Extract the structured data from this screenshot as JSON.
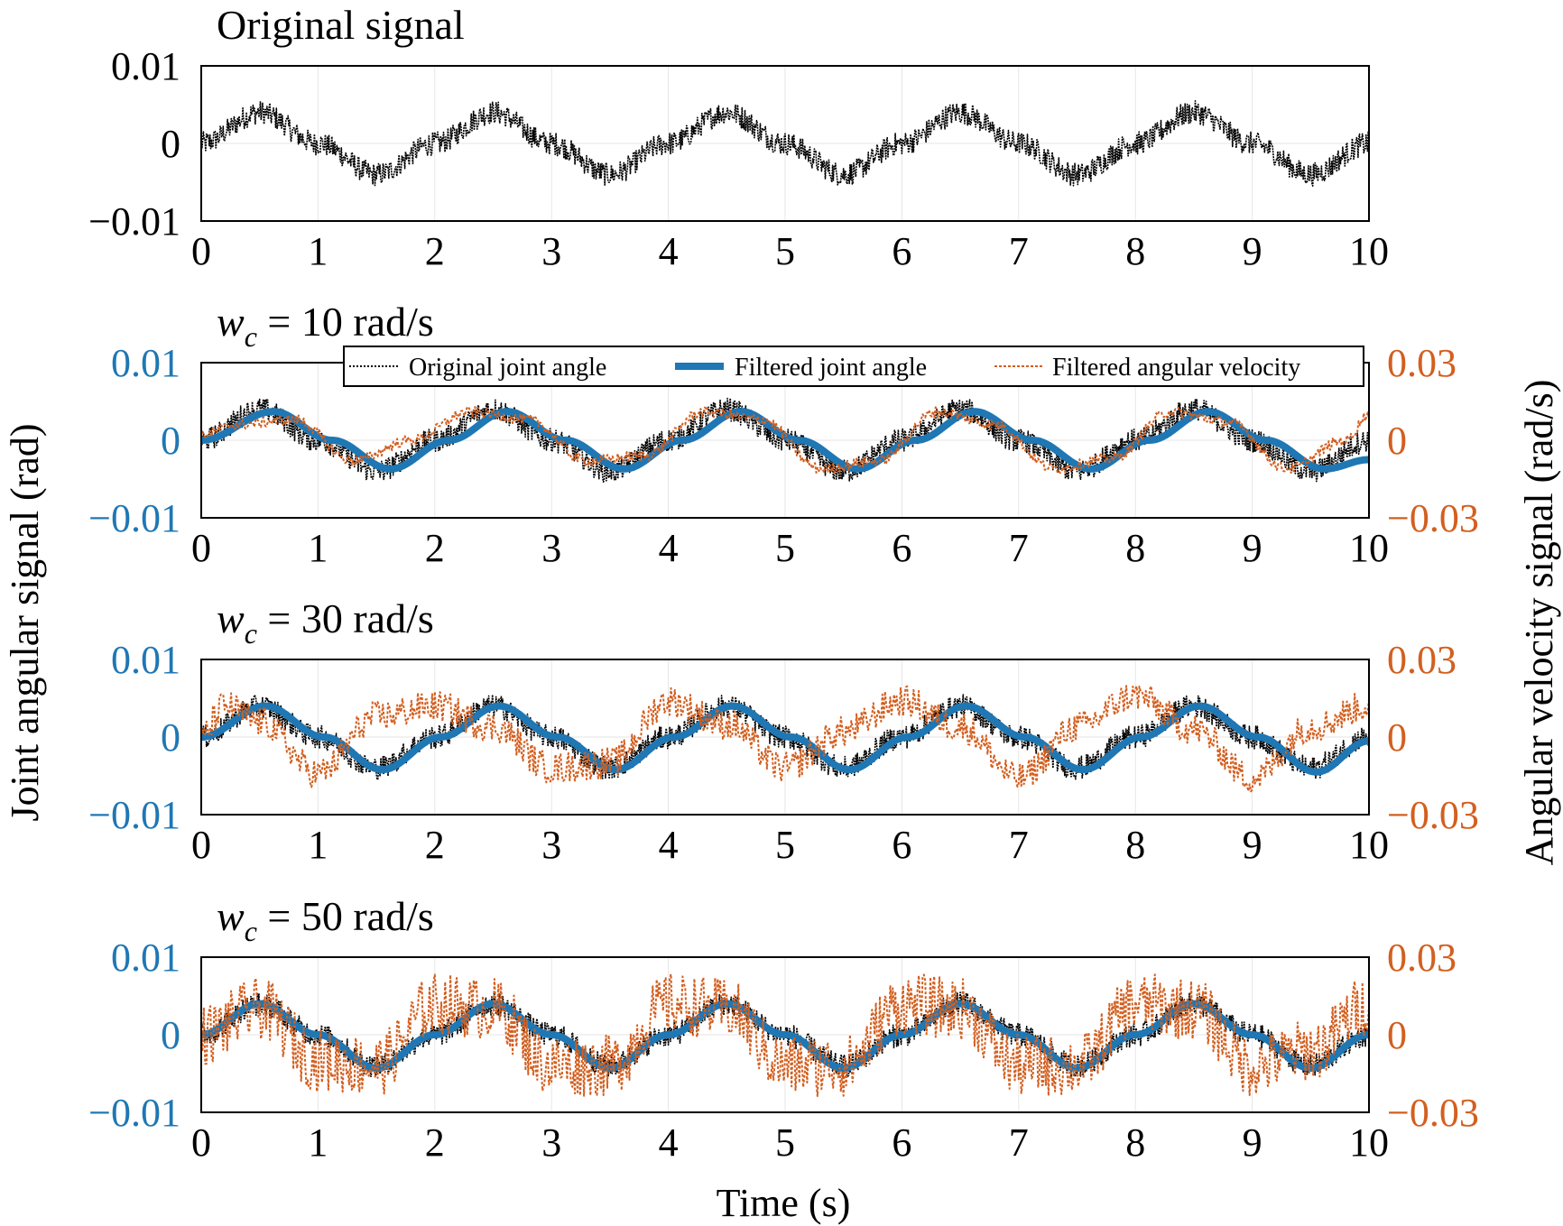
{
  "colors": {
    "original": "#000000",
    "filtered": "#1f77b4",
    "velocity": "#d35f1f",
    "grid": "#e6e6e6"
  },
  "labels": {
    "ylabel_left": "Joint angular signal (rad)",
    "ylabel_right": "Angular velocity signal (rad/s)",
    "xlabel": "Time (s)"
  },
  "legend": {
    "original": "Original joint angle",
    "filtered": "Filtered joint angle",
    "velocity": "Filtered angular velocity"
  },
  "chart_data": [
    {
      "type": "line",
      "title": "Original signal",
      "xlim": [
        0,
        10
      ],
      "ylim": [
        -0.01,
        0.01
      ],
      "xticks": [
        "0",
        "1",
        "2",
        "3",
        "4",
        "5",
        "6",
        "7",
        "8",
        "9",
        "10"
      ],
      "yticks": [
        "0.01",
        "0",
        "−0.01"
      ],
      "series": [
        {
          "name": "Original joint angle",
          "x": [
            0,
            0.5,
            1,
            1.5,
            2,
            2.5,
            3,
            3.5,
            4,
            4.5,
            5,
            5.5,
            6,
            6.5,
            7,
            7.5,
            8,
            8.5,
            9,
            9.5,
            10
          ],
          "y": [
            0,
            0.004,
            0,
            -0.004,
            0,
            0.004,
            0,
            -0.004,
            0,
            0.004,
            0,
            -0.004,
            0,
            0.004,
            0,
            -0.004,
            0,
            0.004,
            0,
            -0.004,
            0
          ],
          "noise": 0.0015
        }
      ]
    },
    {
      "type": "line",
      "title_prefix": "w",
      "title_sub": "c",
      "title_rest": " = 10 rad/s",
      "xlim": [
        0,
        10
      ],
      "ylim": [
        -0.01,
        0.01
      ],
      "y2lim": [
        -0.03,
        0.03
      ],
      "xticks": [
        "0",
        "1",
        "2",
        "3",
        "4",
        "5",
        "6",
        "7",
        "8",
        "9",
        "10"
      ],
      "yticks": [
        "0.01",
        "0",
        "−0.01"
      ],
      "y2ticks": [
        "0.03",
        "0",
        "−0.03"
      ],
      "series": [
        {
          "name": "Original joint angle",
          "x": [
            0,
            0.5,
            1,
            1.5,
            2,
            2.5,
            3,
            3.5,
            4,
            4.5,
            5,
            5.5,
            6,
            6.5,
            7,
            7.5,
            8,
            8.5,
            9,
            9.5,
            10
          ],
          "y": [
            0,
            0.004,
            0,
            -0.004,
            0,
            0.004,
            0,
            -0.004,
            0,
            0.004,
            0,
            -0.004,
            0,
            0.004,
            0,
            -0.004,
            0,
            0.004,
            0,
            -0.004,
            0
          ],
          "noise": 0.0015
        },
        {
          "name": "Filtered joint angle",
          "x": [
            0,
            0.62,
            1.12,
            1.62,
            2.12,
            2.62,
            3.12,
            3.62,
            4.12,
            4.62,
            5.12,
            5.62,
            6.12,
            6.62,
            7.12,
            7.62,
            8.12,
            8.62,
            9.12,
            9.62,
            10
          ],
          "y": [
            0,
            0.0037,
            0,
            -0.0037,
            0,
            0.0037,
            0,
            -0.0037,
            0,
            0.0037,
            0,
            -0.0037,
            0,
            0.0037,
            0,
            -0.0037,
            0,
            0.0037,
            0,
            -0.0037,
            -0.0025
          ]
        },
        {
          "name": "Filtered angular velocity",
          "x": [
            0,
            0.3,
            0.8,
            1.3,
            1.8,
            2.3,
            2.8,
            3.3,
            3.8,
            4.3,
            4.8,
            5.3,
            5.8,
            6.3,
            6.8,
            7.3,
            7.8,
            8.3,
            8.8,
            9.3,
            9.8,
            10
          ],
          "y": [
            0.002,
            0.006,
            0.008,
            -0.008,
            0,
            0.011,
            0.008,
            -0.008,
            -0.006,
            0.011,
            0.008,
            -0.011,
            -0.008,
            0.011,
            0.006,
            -0.011,
            -0.007,
            0.011,
            0.007,
            -0.011,
            0,
            0.01
          ],
          "noise": 0.002
        }
      ]
    },
    {
      "type": "line",
      "title_prefix": "w",
      "title_sub": "c",
      "title_rest": " = 30 rad/s",
      "xlim": [
        0,
        10
      ],
      "ylim": [
        -0.01,
        0.01
      ],
      "y2lim": [
        -0.03,
        0.03
      ],
      "xticks": [
        "0",
        "1",
        "2",
        "3",
        "4",
        "5",
        "6",
        "7",
        "8",
        "9",
        "10"
      ],
      "yticks": [
        "0.01",
        "0",
        "−0.01"
      ],
      "y2ticks": [
        "0.03",
        "0",
        "−0.03"
      ],
      "series": [
        {
          "name": "Original joint angle",
          "x": [
            0,
            0.5,
            1,
            1.5,
            2,
            2.5,
            3,
            3.5,
            4,
            4.5,
            5,
            5.5,
            6,
            6.5,
            7,
            7.5,
            8,
            8.5,
            9,
            9.5,
            10
          ],
          "y": [
            0,
            0.004,
            0,
            -0.004,
            0,
            0.004,
            0,
            -0.004,
            0,
            0.004,
            0,
            -0.004,
            0,
            0.004,
            0,
            -0.004,
            0,
            0.004,
            0,
            -0.004,
            0
          ],
          "noise": 0.0015
        },
        {
          "name": "Filtered joint angle",
          "x": [
            0,
            0.55,
            1.05,
            1.55,
            2.05,
            2.55,
            3.05,
            3.55,
            4.05,
            4.55,
            5.05,
            5.55,
            6.05,
            6.55,
            7.05,
            7.55,
            8.05,
            8.55,
            9.05,
            9.55,
            10
          ],
          "y": [
            0,
            0.004,
            0,
            -0.0042,
            0,
            0.004,
            0,
            -0.0042,
            0,
            0.004,
            0,
            -0.0042,
            0,
            0.004,
            0,
            -0.0042,
            0,
            0.004,
            0,
            -0.0045,
            -0.0005
          ]
        },
        {
          "name": "Filtered angular velocity",
          "x": [
            0,
            0.2,
            0.5,
            1,
            1.5,
            2,
            2.5,
            3,
            3.5,
            4,
            4.5,
            5,
            5.5,
            6,
            6.5,
            7,
            7.5,
            8,
            8.5,
            9,
            9.5,
            10
          ],
          "y": [
            0,
            0.012,
            0.006,
            -0.014,
            0.008,
            0.012,
            0.004,
            -0.012,
            -0.01,
            0.014,
            0.005,
            -0.012,
            0.002,
            0.014,
            0.004,
            -0.016,
            0.004,
            0.016,
            0.003,
            -0.016,
            0.004,
            0.012
          ],
          "noise": 0.006
        }
      ]
    },
    {
      "type": "line",
      "title_prefix": "w",
      "title_sub": "c",
      "title_rest": " = 50 rad/s",
      "xlim": [
        0,
        10
      ],
      "ylim": [
        -0.01,
        0.01
      ],
      "y2lim": [
        -0.03,
        0.03
      ],
      "xticks": [
        "0",
        "1",
        "2",
        "3",
        "4",
        "5",
        "6",
        "7",
        "8",
        "9",
        "10"
      ],
      "yticks": [
        "0.01",
        "0",
        "−0.01"
      ],
      "y2ticks": [
        "0.03",
        "0",
        "−0.03"
      ],
      "series": [
        {
          "name": "Original joint angle",
          "x": [
            0,
            0.5,
            1,
            1.5,
            2,
            2.5,
            3,
            3.5,
            4,
            4.5,
            5,
            5.5,
            6,
            6.5,
            7,
            7.5,
            8,
            8.5,
            9,
            9.5,
            10
          ],
          "y": [
            0,
            0.004,
            0,
            -0.004,
            0,
            0.004,
            0,
            -0.004,
            0,
            0.004,
            0,
            -0.004,
            0,
            0.004,
            0,
            -0.004,
            0,
            0.004,
            0,
            -0.004,
            0
          ],
          "noise": 0.0015
        },
        {
          "name": "Filtered joint angle",
          "x": [
            0,
            0.5,
            1,
            1.5,
            2,
            2.5,
            3,
            3.5,
            4,
            4.5,
            5,
            5.5,
            6,
            6.5,
            7,
            7.5,
            8,
            8.5,
            9,
            9.5,
            10
          ],
          "y": [
            0,
            0.004,
            0,
            -0.0043,
            0,
            0.004,
            0,
            -0.0043,
            0,
            0.004,
            0,
            -0.0043,
            0,
            0.004,
            0,
            -0.0043,
            0,
            0.004,
            0,
            -0.0043,
            0
          ]
        },
        {
          "name": "Filtered angular velocity",
          "x": [
            0,
            0.5,
            1,
            1.5,
            2,
            2.5,
            3,
            3.5,
            4,
            4.5,
            5,
            5.5,
            6,
            6.5,
            7,
            7.5,
            8,
            8.5,
            9,
            9.5,
            10
          ],
          "y": [
            0,
            0.01,
            -0.01,
            -0.012,
            0.012,
            0.01,
            -0.012,
            -0.012,
            0.012,
            0.01,
            -0.012,
            -0.012,
            0.012,
            0.01,
            -0.012,
            -0.012,
            0.012,
            0.01,
            -0.012,
            -0.006,
            0.012
          ],
          "noise": 0.012
        }
      ]
    }
  ]
}
